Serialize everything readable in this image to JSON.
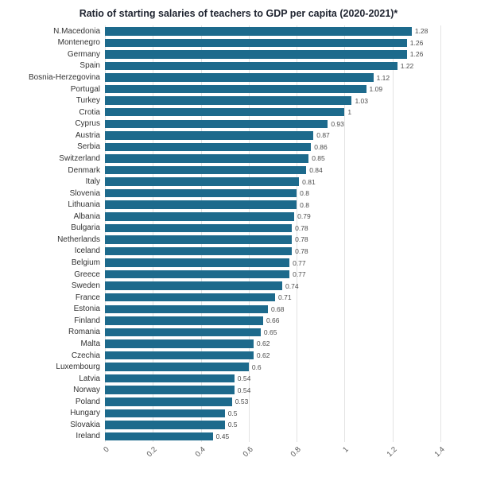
{
  "chart_data": {
    "type": "bar",
    "orientation": "horizontal",
    "title": "Ratio of starting salaries of teachers to GDP per capita (2020-2021)*",
    "xlabel": "",
    "ylabel": "",
    "xlim": [
      0,
      1.4
    ],
    "grid": true,
    "legend": "none",
    "categories": [
      "N.Macedonia",
      "Montenegro",
      "Germany",
      "Spain",
      "Bosnia-Herzegovina",
      "Portugal",
      "Turkey",
      "Crotia",
      "Cyprus",
      "Austria",
      "Serbia",
      "Switzerland",
      "Denmark",
      "Italy",
      "Slovenia",
      "Lithuania",
      "Albania",
      "Bulgaria",
      "Netherlands",
      "Iceland",
      "Belgium",
      "Greece",
      "Sweden",
      "France",
      "Estonia",
      "Finland",
      "Romania",
      "Malta",
      "Czechia",
      "Luxembourg",
      "Latvia",
      "Norway",
      "Poland",
      "Hungary",
      "Slovakia",
      "Ireland"
    ],
    "values": [
      1.28,
      1.26,
      1.26,
      1.22,
      1.12,
      1.09,
      1.03,
      1,
      0.93,
      0.87,
      0.86,
      0.85,
      0.84,
      0.81,
      0.8,
      0.8,
      0.79,
      0.78,
      0.78,
      0.78,
      0.77,
      0.77,
      0.74,
      0.71,
      0.68,
      0.66,
      0.65,
      0.62,
      0.62,
      0.6,
      0.54,
      0.54,
      0.53,
      0.5,
      0.5,
      0.45
    ],
    "value_labels": [
      "1.28",
      "1.26",
      "1.26",
      "1.22",
      "1.12",
      "1.09",
      "1.03",
      "1",
      "0.93",
      "0.87",
      "0.86",
      "0.85",
      "0.84",
      "0.81",
      "0.8",
      "0.8",
      "0.79",
      "0.78",
      "0.78",
      "0.78",
      "0.77",
      "0.77",
      "0.74",
      "0.71",
      "0.68",
      "0.66",
      "0.65",
      "0.62",
      "0.62",
      "0.6",
      "0.54",
      "0.54",
      "0.53",
      "0.5",
      "0.5",
      "0.45"
    ],
    "ticks": {
      "values": [
        0,
        0.2,
        0.4,
        0.6,
        0.8,
        1,
        1.2,
        1.4
      ],
      "labels": [
        "0",
        "0.2",
        "0.4",
        "0.6",
        "0.8",
        "1",
        "1.2",
        "1.4"
      ]
    },
    "colors": {
      "bar": "#1d6a8c",
      "gridline": "#e3e3e3",
      "title_text": "#1f2430",
      "category_text": "#333333",
      "value_text": "#4d4d4d",
      "tick_text": "#555555",
      "background": "#ffffff"
    }
  }
}
